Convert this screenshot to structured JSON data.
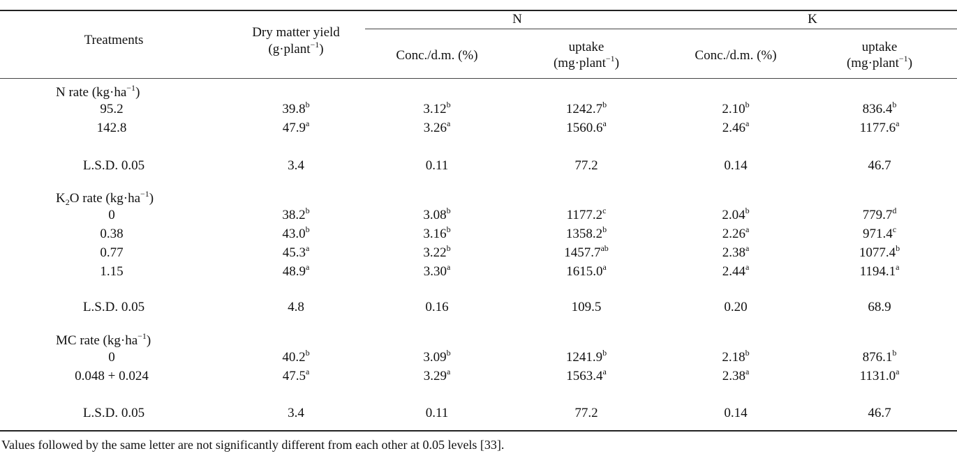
{
  "header": {
    "treatments": "Treatments",
    "dmy_line1": "Dry matter yield",
    "dmy_line2_pre": "(g·plant",
    "dmy_line2_sup": "−1",
    "dmy_line2_post": ")",
    "group_n": "N",
    "group_k": "K",
    "conc": "Conc./d.m. (%)",
    "uptake": "uptake",
    "uptake_unit_pre": "(mg·plant",
    "uptake_unit_sup": "−1",
    "uptake_unit_post": ")"
  },
  "sections": [
    {
      "title_parts": [
        "N rate (kg·ha",
        "−1",
        ")"
      ],
      "rows": [
        {
          "treatment": "95.2",
          "dmy": [
            "39.8",
            "b"
          ],
          "n_conc": [
            "3.12",
            "b"
          ],
          "n_up": [
            "1242.7",
            "b"
          ],
          "k_conc": [
            "2.10",
            "b"
          ],
          "k_up": [
            "836.4",
            "b"
          ]
        },
        {
          "treatment": "142.8",
          "dmy": [
            "47.9",
            "a"
          ],
          "n_conc": [
            "3.26",
            "a"
          ],
          "n_up": [
            "1560.6",
            "a"
          ],
          "k_conc": [
            "2.46",
            "a"
          ],
          "k_up": [
            "1177.6",
            "a"
          ]
        }
      ],
      "lsd": {
        "label": "L.S.D. 0.05",
        "dmy": "3.4",
        "n_conc": "0.11",
        "n_up": "77.2",
        "k_conc": "0.14",
        "k_up": "46.7"
      }
    },
    {
      "title_parts": [
        "K",
        "2",
        "O rate (kg·ha",
        "−1",
        ")"
      ],
      "rows": [
        {
          "treatment": "0",
          "dmy": [
            "38.2",
            "b"
          ],
          "n_conc": [
            "3.08",
            "b"
          ],
          "n_up": [
            "1177.2",
            "c"
          ],
          "k_conc": [
            "2.04",
            "b"
          ],
          "k_up": [
            "779.7",
            "d"
          ]
        },
        {
          "treatment": "0.38",
          "dmy": [
            "43.0",
            "b"
          ],
          "n_conc": [
            "3.16",
            "b"
          ],
          "n_up": [
            "1358.2",
            "b"
          ],
          "k_conc": [
            "2.26",
            "a"
          ],
          "k_up": [
            "971.4",
            "c"
          ]
        },
        {
          "treatment": "0.77",
          "dmy": [
            "45.3",
            "a"
          ],
          "n_conc": [
            "3.22",
            "b"
          ],
          "n_up": [
            "1457.7",
            "ab"
          ],
          "k_conc": [
            "2.38",
            "a"
          ],
          "k_up": [
            "1077.4",
            "b"
          ]
        },
        {
          "treatment": "1.15",
          "dmy": [
            "48.9",
            "a"
          ],
          "n_conc": [
            "3.30",
            "a"
          ],
          "n_up": [
            "1615.0",
            "a"
          ],
          "k_conc": [
            "2.44",
            "a"
          ],
          "k_up": [
            "1194.1",
            "a"
          ]
        }
      ],
      "lsd": {
        "label": "L.S.D. 0.05",
        "dmy": "4.8",
        "n_conc": "0.16",
        "n_up": "109.5",
        "k_conc": "0.20",
        "k_up": "68.9"
      }
    },
    {
      "title_parts": [
        "MC rate (kg·ha",
        "−1",
        ")"
      ],
      "rows": [
        {
          "treatment": "0",
          "dmy": [
            "40.2",
            "b"
          ],
          "n_conc": [
            "3.09",
            "b"
          ],
          "n_up": [
            "1241.9",
            "b"
          ],
          "k_conc": [
            "2.18",
            "b"
          ],
          "k_up": [
            "876.1",
            "b"
          ]
        },
        {
          "treatment": "0.048 + 0.024",
          "dmy": [
            "47.5",
            "a"
          ],
          "n_conc": [
            "3.29",
            "a"
          ],
          "n_up": [
            "1563.4",
            "a"
          ],
          "k_conc": [
            "2.38",
            "a"
          ],
          "k_up": [
            "1131.0",
            "a"
          ]
        }
      ],
      "lsd": {
        "label": "L.S.D. 0.05",
        "dmy": "3.4",
        "n_conc": "0.11",
        "n_up": "77.2",
        "k_conc": "0.14",
        "k_up": "46.7"
      }
    }
  ],
  "footnote": "Values followed by the same letter are not significantly different from each other at 0.05 levels [33]."
}
